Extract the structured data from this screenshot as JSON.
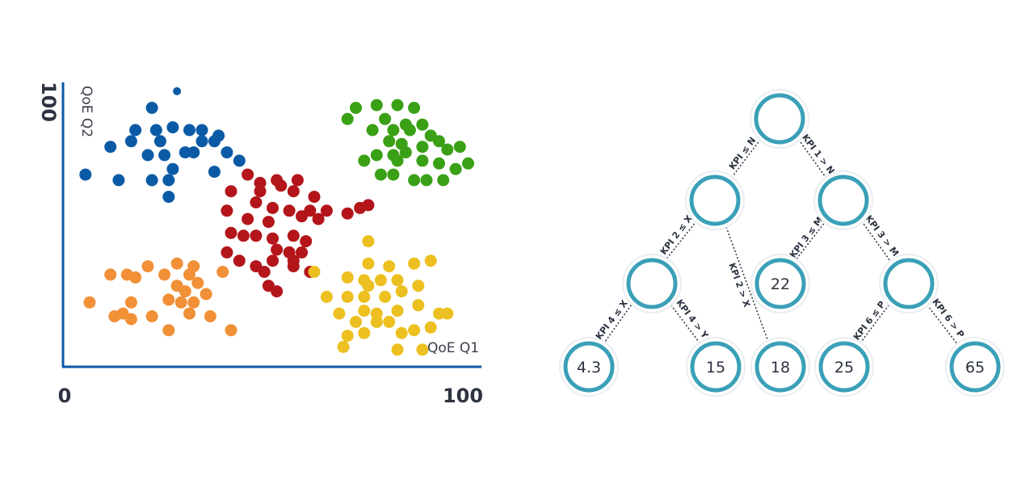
{
  "scatter": {
    "x_min_tick": "0",
    "x_max_tick": "100",
    "y_max_tick": "100",
    "x_label": "QoE Q1",
    "y_label": "QoE Q2",
    "xlim": [
      0,
      100
    ],
    "ylim": [
      0,
      100
    ],
    "clusters": [
      {
        "color": "#0b5aa6",
        "points": [
          [
            27,
            98
          ],
          [
            21,
            92
          ],
          [
            17,
            84
          ],
          [
            22,
            84
          ],
          [
            26,
            85
          ],
          [
            30,
            84
          ],
          [
            33,
            84
          ],
          [
            37,
            82
          ],
          [
            11,
            78
          ],
          [
            16,
            80
          ],
          [
            23,
            80
          ],
          [
            33,
            80
          ],
          [
            36,
            80
          ],
          [
            20,
            75
          ],
          [
            24,
            75
          ],
          [
            29,
            76
          ],
          [
            31,
            76
          ],
          [
            39,
            76
          ],
          [
            42,
            73
          ],
          [
            26,
            70
          ],
          [
            36,
            69
          ],
          [
            5,
            68
          ],
          [
            13,
            66
          ],
          [
            21,
            66
          ],
          [
            25,
            66
          ],
          [
            25,
            60
          ]
        ]
      },
      {
        "color": "#b3151a",
        "points": [
          [
            44,
            68
          ],
          [
            47,
            65
          ],
          [
            51,
            66
          ],
          [
            56,
            66
          ],
          [
            52,
            64
          ],
          [
            40,
            62
          ],
          [
            47,
            62
          ],
          [
            55,
            62
          ],
          [
            60,
            60
          ],
          [
            46,
            58
          ],
          [
            39,
            55
          ],
          [
            50,
            56
          ],
          [
            54,
            55
          ],
          [
            59,
            55
          ],
          [
            63,
            55
          ],
          [
            57,
            53
          ],
          [
            68,
            54
          ],
          [
            71,
            56
          ],
          [
            73,
            57
          ],
          [
            44,
            52
          ],
          [
            49,
            51
          ],
          [
            61,
            52
          ],
          [
            40,
            47
          ],
          [
            46,
            46
          ],
          [
            55,
            46
          ],
          [
            50,
            45
          ],
          [
            43,
            46
          ],
          [
            58,
            44
          ],
          [
            51,
            41
          ],
          [
            54,
            40
          ],
          [
            57,
            40
          ],
          [
            39,
            40
          ],
          [
            42,
            37
          ],
          [
            50,
            37
          ],
          [
            55,
            37
          ],
          [
            46,
            35
          ],
          [
            55,
            35
          ],
          [
            48,
            33
          ],
          [
            59,
            33
          ],
          [
            49,
            28
          ],
          [
            51,
            26
          ]
        ]
      },
      {
        "color": "#f19037",
        "points": [
          [
            20,
            35
          ],
          [
            27,
            36
          ],
          [
            31,
            35
          ],
          [
            11,
            32
          ],
          [
            15,
            32
          ],
          [
            24,
            32
          ],
          [
            30,
            32
          ],
          [
            38,
            33
          ],
          [
            17,
            31
          ],
          [
            32,
            29
          ],
          [
            27,
            28
          ],
          [
            29,
            26
          ],
          [
            34,
            25
          ],
          [
            6,
            22
          ],
          [
            16,
            22
          ],
          [
            25,
            23
          ],
          [
            28,
            22
          ],
          [
            31,
            22
          ],
          [
            14,
            18
          ],
          [
            30,
            18
          ],
          [
            16,
            16
          ],
          [
            21,
            17
          ],
          [
            35,
            17
          ],
          [
            25,
            12
          ],
          [
            40,
            12
          ],
          [
            12,
            17
          ]
        ]
      },
      {
        "color": "#ecc020",
        "points": [
          [
            73,
            44
          ],
          [
            73,
            36
          ],
          [
            78,
            35
          ],
          [
            84,
            36
          ],
          [
            88,
            37
          ],
          [
            60,
            33
          ],
          [
            68,
            31
          ],
          [
            72,
            30
          ],
          [
            76,
            30
          ],
          [
            80,
            30
          ],
          [
            85,
            28
          ],
          [
            63,
            24
          ],
          [
            68,
            24
          ],
          [
            72,
            24
          ],
          [
            77,
            24
          ],
          [
            73,
            28
          ],
          [
            81,
            26
          ],
          [
            66,
            18
          ],
          [
            72,
            19
          ],
          [
            75,
            18
          ],
          [
            80,
            19
          ],
          [
            85,
            21
          ],
          [
            90,
            18
          ],
          [
            70,
            15
          ],
          [
            75,
            15
          ],
          [
            78,
            15
          ],
          [
            84,
            12
          ],
          [
            88,
            13
          ],
          [
            68,
            10
          ],
          [
            72,
            11
          ],
          [
            81,
            11
          ],
          [
            92,
            18
          ],
          [
            80,
            5
          ],
          [
            86,
            5
          ],
          [
            67,
            6
          ]
        ]
      },
      {
        "color": "#3aa016",
        "points": [
          [
            70,
            92
          ],
          [
            75,
            93
          ],
          [
            80,
            93
          ],
          [
            84,
            92
          ],
          [
            68,
            88
          ],
          [
            77,
            88
          ],
          [
            82,
            86
          ],
          [
            86,
            86
          ],
          [
            74,
            84
          ],
          [
            79,
            84
          ],
          [
            83,
            84
          ],
          [
            88,
            82
          ],
          [
            90,
            80
          ],
          [
            78,
            80
          ],
          [
            81,
            79
          ],
          [
            86,
            78
          ],
          [
            92,
            77
          ],
          [
            95,
            78
          ],
          [
            75,
            75
          ],
          [
            79,
            75
          ],
          [
            82,
            76
          ],
          [
            72,
            73
          ],
          [
            80,
            73
          ],
          [
            86,
            73
          ],
          [
            90,
            72
          ],
          [
            97,
            72
          ],
          [
            94,
            70
          ],
          [
            76,
            68
          ],
          [
            79,
            68
          ],
          [
            84,
            66
          ],
          [
            87,
            66
          ],
          [
            91,
            66
          ]
        ]
      }
    ]
  },
  "tree": {
    "ring_color": "#3aa0b8",
    "edges": {
      "root_left": "KPI ≤ N",
      "root_right": "KPI 1 > N",
      "n1_left": "KPI 2 ≤ X",
      "n1_right": "KPI 2 > X",
      "n2_left": "KPI 3 ≤ M",
      "n2_right": "KPI 3 > M",
      "n3_left": "KPI 4 ≤ X",
      "n3_right": "KPI 4 > Y",
      "n4_left": "KPI 6 ≤ P",
      "n4_right": "KPI 6 > P"
    },
    "leaves": {
      "a": "4.3",
      "b": "15",
      "c": "18",
      "d": "25",
      "e": "65",
      "mid": "22"
    }
  }
}
